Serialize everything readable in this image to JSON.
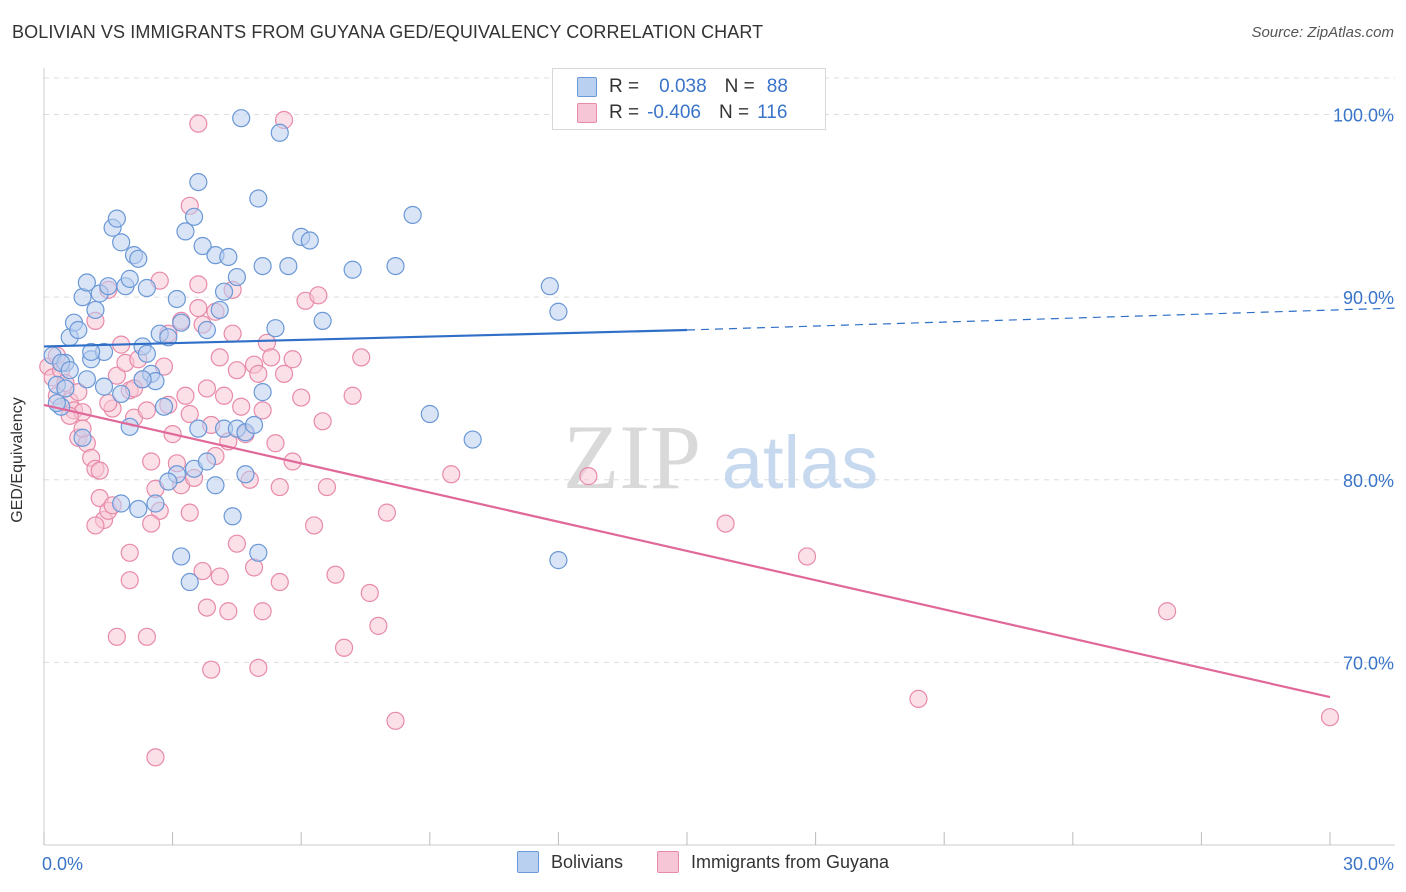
{
  "title": "BOLIVIAN VS IMMIGRANTS FROM GUYANA GED/EQUIVALENCY CORRELATION CHART",
  "source": "Source: ZipAtlas.com",
  "watermark": {
    "zip": "ZIP",
    "atlas": "atlas"
  },
  "legend": {
    "rows": [
      {
        "r_label": "R =",
        "r_value": "0.038",
        "n_label": "N =",
        "n_value": "88"
      },
      {
        "r_label": "R =",
        "r_value": "-0.406",
        "n_label": "N =",
        "n_value": "116"
      }
    ]
  },
  "colors": {
    "bolivians_fill": "#b9d0f0",
    "bolivians_stroke": "#6b98d6",
    "bolivians_line": "#2f6fc7",
    "guyana_fill": "#f7c6d6",
    "guyana_stroke": "#e88aa9",
    "guyana_line": "#e0699a",
    "grid": "#dddddd",
    "tick_label": "#3a74c9"
  },
  "chart_data": {
    "type": "scatter",
    "title": "BOLIVIAN VS IMMIGRANTS FROM GUYANA GED/EQUIVALENCY CORRELATION CHART",
    "xlabel": "",
    "ylabel": "GED/Equivalency",
    "xlim": [
      0,
      30
    ],
    "ylim": [
      60,
      100
    ],
    "x_tick_labels": [
      "0.0%",
      "30.0%"
    ],
    "y_tick_values": [
      70,
      80,
      90,
      100
    ],
    "y_tick_labels": [
      "70.0%",
      "80.0%",
      "90.0%",
      "100.0%"
    ],
    "grid": true,
    "legend_position": "bottom",
    "series": [
      {
        "name": "Bolivians",
        "R": 0.038,
        "N": 88,
        "trend": {
          "x_start": 0,
          "y_start": 87.3,
          "x_solid_end": 15.0,
          "y_solid_end": 88.2,
          "x_end": 30,
          "y_end": 89.4
        },
        "points": [
          [
            0.2,
            86.8
          ],
          [
            0.3,
            85.2
          ],
          [
            0.4,
            84.0
          ],
          [
            0.5,
            86.4
          ],
          [
            0.6,
            87.8
          ],
          [
            0.7,
            88.6
          ],
          [
            0.8,
            88.2
          ],
          [
            0.9,
            90.0
          ],
          [
            1.0,
            90.8
          ],
          [
            1.1,
            86.6
          ],
          [
            1.2,
            89.3
          ],
          [
            1.3,
            90.2
          ],
          [
            1.4,
            87.0
          ],
          [
            1.5,
            90.6
          ],
          [
            1.6,
            93.8
          ],
          [
            1.7,
            94.3
          ],
          [
            1.8,
            93.0
          ],
          [
            1.9,
            90.6
          ],
          [
            2.0,
            91.0
          ],
          [
            2.1,
            92.3
          ],
          [
            2.2,
            92.1
          ],
          [
            2.3,
            87.3
          ],
          [
            2.4,
            86.9
          ],
          [
            2.5,
            85.8
          ],
          [
            2.6,
            85.4
          ],
          [
            2.7,
            88.0
          ],
          [
            2.8,
            84.0
          ],
          [
            2.9,
            87.8
          ],
          [
            3.1,
            89.9
          ],
          [
            3.2,
            88.6
          ],
          [
            3.3,
            93.6
          ],
          [
            3.5,
            94.4
          ],
          [
            3.6,
            96.3
          ],
          [
            3.7,
            92.8
          ],
          [
            3.8,
            88.2
          ],
          [
            4.0,
            92.3
          ],
          [
            4.2,
            90.3
          ],
          [
            4.3,
            92.2
          ],
          [
            4.5,
            91.1
          ],
          [
            4.6,
            99.8
          ],
          [
            5.0,
            95.4
          ],
          [
            5.1,
            91.7
          ],
          [
            5.4,
            88.3
          ],
          [
            5.5,
            99.0
          ],
          [
            5.7,
            91.7
          ],
          [
            6.0,
            93.3
          ],
          [
            6.2,
            93.1
          ],
          [
            6.5,
            88.7
          ],
          [
            7.2,
            91.5
          ],
          [
            8.2,
            91.7
          ],
          [
            8.6,
            94.5
          ],
          [
            9.0,
            83.6
          ],
          [
            10.0,
            82.2
          ],
          [
            11.8,
            90.6
          ],
          [
            12.0,
            89.2
          ],
          [
            12.0,
            75.6
          ],
          [
            0.4,
            86.4
          ],
          [
            0.5,
            85.0
          ],
          [
            0.9,
            82.3
          ],
          [
            1.1,
            87.0
          ],
          [
            1.4,
            85.1
          ],
          [
            1.8,
            84.7
          ],
          [
            2.3,
            85.5
          ],
          [
            3.1,
            80.3
          ],
          [
            3.5,
            80.6
          ],
          [
            3.8,
            81.0
          ],
          [
            4.2,
            82.8
          ],
          [
            4.5,
            82.8
          ],
          [
            4.7,
            82.6
          ],
          [
            4.9,
            83.0
          ],
          [
            5.1,
            84.8
          ],
          [
            2.2,
            78.4
          ],
          [
            2.6,
            78.7
          ],
          [
            3.2,
            75.8
          ],
          [
            3.4,
            74.4
          ],
          [
            4.0,
            79.7
          ],
          [
            4.4,
            78.0
          ],
          [
            4.7,
            80.3
          ],
          [
            5.0,
            76.0
          ],
          [
            1.8,
            78.7
          ],
          [
            2.9,
            79.9
          ],
          [
            0.3,
            84.2
          ],
          [
            0.6,
            86.0
          ],
          [
            1.0,
            85.5
          ],
          [
            2.0,
            82.9
          ],
          [
            3.6,
            82.8
          ],
          [
            2.4,
            90.5
          ],
          [
            4.1,
            89.3
          ]
        ]
      },
      {
        "name": "Immigrants from Guyana",
        "R": -0.406,
        "N": 116,
        "trend": {
          "x_start": 0,
          "y_start": 84.1,
          "x_end": 30,
          "y_end": 68.1
        },
        "points": [
          [
            0.1,
            86.2
          ],
          [
            0.2,
            85.6
          ],
          [
            0.3,
            84.6
          ],
          [
            0.4,
            86.0
          ],
          [
            0.5,
            85.3
          ],
          [
            0.6,
            84.3
          ],
          [
            0.7,
            83.8
          ],
          [
            0.8,
            82.3
          ],
          [
            0.9,
            83.7
          ],
          [
            1.0,
            82.0
          ],
          [
            1.1,
            81.2
          ],
          [
            1.2,
            80.6
          ],
          [
            1.3,
            79.0
          ],
          [
            1.4,
            77.8
          ],
          [
            1.5,
            78.3
          ],
          [
            1.6,
            83.9
          ],
          [
            1.7,
            85.7
          ],
          [
            1.8,
            87.4
          ],
          [
            1.9,
            86.4
          ],
          [
            2.0,
            84.9
          ],
          [
            2.1,
            83.4
          ],
          [
            2.2,
            86.6
          ],
          [
            2.3,
            85.5
          ],
          [
            2.4,
            83.8
          ],
          [
            2.5,
            81.0
          ],
          [
            2.6,
            79.5
          ],
          [
            2.7,
            78.3
          ],
          [
            2.8,
            86.2
          ],
          [
            2.9,
            84.1
          ],
          [
            3.0,
            82.5
          ],
          [
            3.1,
            80.9
          ],
          [
            3.2,
            79.7
          ],
          [
            3.3,
            84.6
          ],
          [
            3.4,
            83.6
          ],
          [
            3.5,
            80.1
          ],
          [
            3.6,
            90.7
          ],
          [
            3.7,
            88.5
          ],
          [
            3.8,
            85.0
          ],
          [
            3.9,
            83.0
          ],
          [
            4.0,
            81.3
          ],
          [
            4.1,
            86.7
          ],
          [
            4.2,
            84.6
          ],
          [
            4.3,
            82.1
          ],
          [
            4.4,
            88.0
          ],
          [
            4.5,
            86.0
          ],
          [
            4.6,
            84.0
          ],
          [
            4.7,
            82.5
          ],
          [
            4.8,
            80.0
          ],
          [
            4.9,
            86.3
          ],
          [
            5.0,
            85.8
          ],
          [
            5.1,
            83.8
          ],
          [
            5.2,
            87.5
          ],
          [
            5.3,
            86.7
          ],
          [
            5.4,
            82.0
          ],
          [
            5.5,
            79.6
          ],
          [
            5.6,
            85.8
          ],
          [
            5.8,
            81.0
          ],
          [
            6.0,
            84.5
          ],
          [
            6.3,
            77.5
          ],
          [
            6.5,
            83.2
          ],
          [
            6.6,
            79.6
          ],
          [
            6.8,
            74.8
          ],
          [
            7.0,
            70.8
          ],
          [
            7.2,
            84.6
          ],
          [
            7.4,
            86.7
          ],
          [
            7.6,
            73.8
          ],
          [
            7.8,
            72.0
          ],
          [
            8.0,
            78.2
          ],
          [
            8.2,
            66.8
          ],
          [
            9.5,
            80.3
          ],
          [
            12.7,
            80.2
          ],
          [
            15.9,
            77.6
          ],
          [
            17.8,
            75.8
          ],
          [
            20.4,
            68.0
          ],
          [
            26.2,
            72.8
          ],
          [
            30.0,
            67.0
          ],
          [
            0.3,
            86.8
          ],
          [
            0.6,
            83.5
          ],
          [
            0.9,
            82.8
          ],
          [
            1.2,
            77.5
          ],
          [
            1.3,
            80.5
          ],
          [
            1.6,
            78.6
          ],
          [
            1.7,
            71.4
          ],
          [
            2.0,
            76.0
          ],
          [
            2.0,
            74.5
          ],
          [
            2.4,
            71.4
          ],
          [
            2.6,
            64.8
          ],
          [
            3.7,
            75.0
          ],
          [
            3.8,
            73.0
          ],
          [
            3.9,
            69.6
          ],
          [
            4.1,
            74.7
          ],
          [
            4.3,
            72.8
          ],
          [
            4.5,
            76.5
          ],
          [
            4.9,
            75.2
          ],
          [
            5.0,
            69.7
          ],
          [
            5.1,
            72.8
          ],
          [
            5.5,
            74.4
          ],
          [
            5.8,
            86.6
          ],
          [
            6.1,
            89.8
          ],
          [
            6.4,
            90.1
          ],
          [
            3.4,
            95.0
          ],
          [
            3.6,
            99.5
          ],
          [
            5.6,
            99.7
          ],
          [
            3.2,
            88.7
          ],
          [
            3.6,
            89.4
          ],
          [
            2.1,
            85.0
          ],
          [
            1.2,
            88.7
          ],
          [
            1.5,
            90.4
          ],
          [
            2.7,
            90.9
          ],
          [
            2.9,
            88.0
          ],
          [
            4.0,
            89.2
          ],
          [
            4.4,
            90.4
          ],
          [
            1.5,
            84.2
          ],
          [
            0.8,
            84.8
          ],
          [
            3.4,
            78.2
          ],
          [
            2.5,
            77.6
          ]
        ]
      }
    ]
  },
  "bottom_legend": [
    {
      "label": "Bolivians"
    },
    {
      "label": "Immigrants from Guyana"
    }
  ]
}
